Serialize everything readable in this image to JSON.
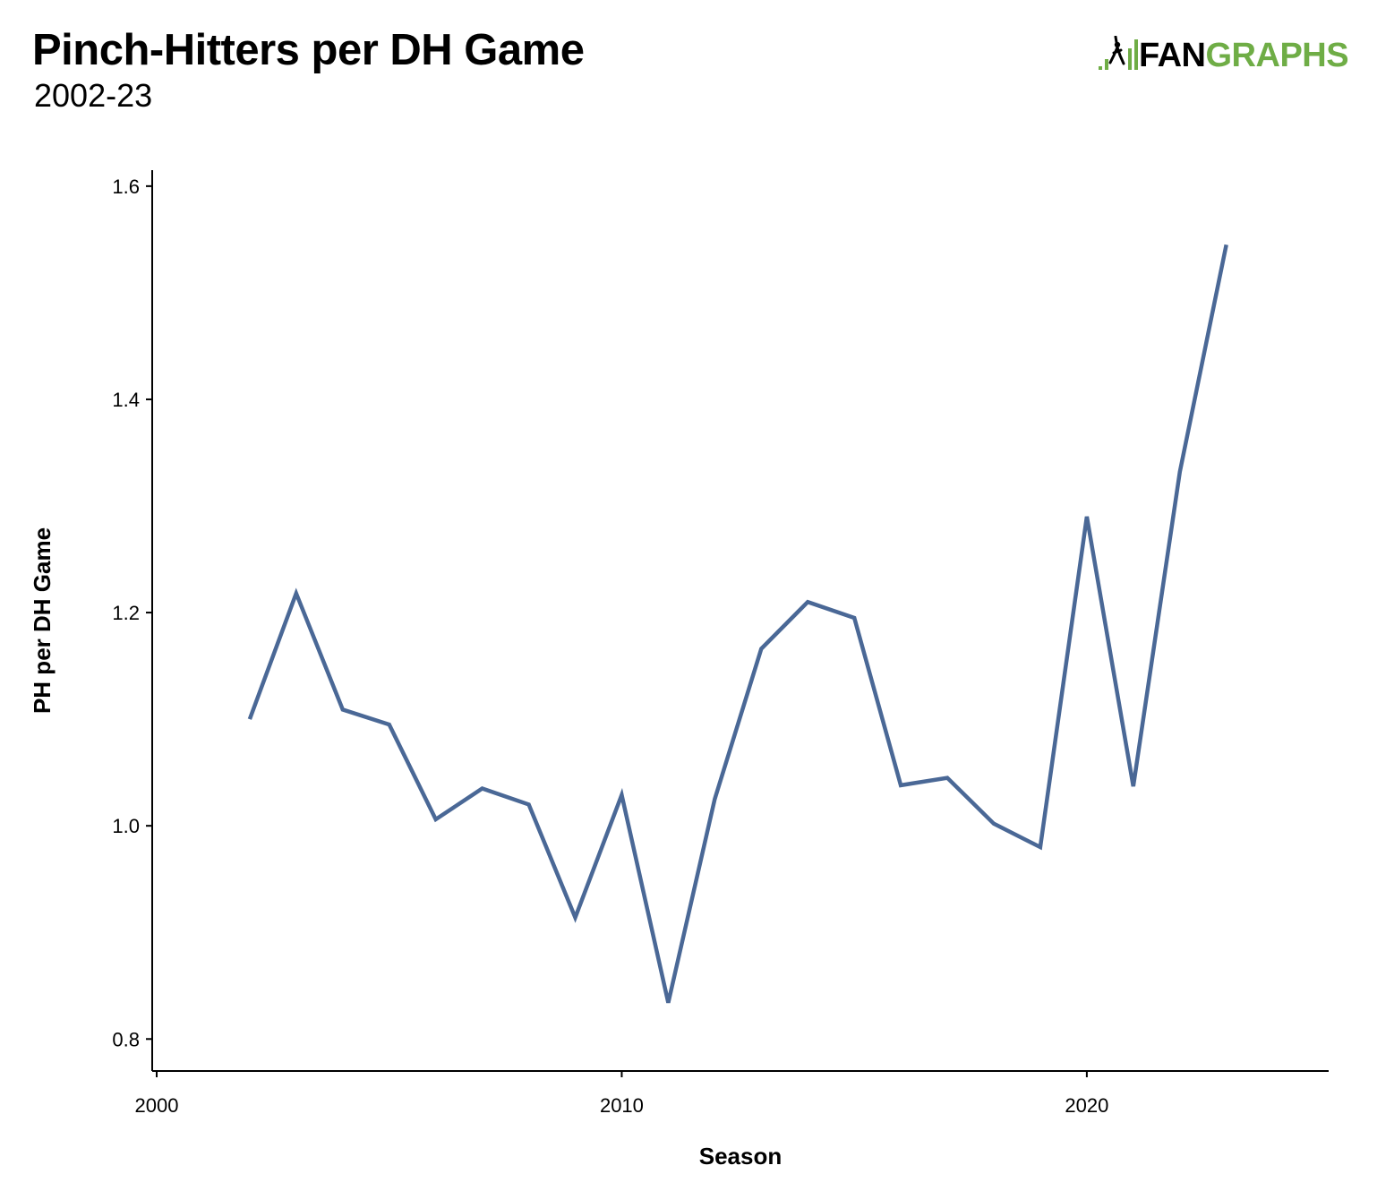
{
  "header": {
    "title": "Pinch-Hitters per DH Game",
    "subtitle": "2002-23"
  },
  "logo": {
    "part1": "FAN",
    "part2": "GRAPHS",
    "accent_color": "#6fad46",
    "icon": "fangraphs-batter-icon"
  },
  "chart_data": {
    "type": "line",
    "title": "Pinch-Hitters per DH Game",
    "subtitle": "2002-23",
    "xlabel": "Season",
    "ylabel": "PH per DH Game",
    "xlim": [
      2000,
      2025.2
    ],
    "ylim": [
      0.77,
      1.615
    ],
    "x_ticks": [
      2000,
      2010,
      2020
    ],
    "y_ticks": [
      0.8,
      1.0,
      1.2,
      1.4,
      1.6
    ],
    "y_tick_labels": [
      "0.8",
      "1.0",
      "1.2",
      "1.4",
      "1.6"
    ],
    "x_tick_labels": [
      "2000",
      "2010",
      "2020"
    ],
    "grid": false,
    "line_color": "#4a6896",
    "series": [
      {
        "x": [
          2002,
          2003,
          2004,
          2005,
          2006,
          2007,
          2008,
          2009,
          2010,
          2011,
          2012,
          2013,
          2014,
          2015,
          2016,
          2017,
          2018,
          2019,
          2020,
          2021,
          2022,
          2023
        ],
        "y": [
          1.1,
          1.218,
          1.109,
          1.095,
          1.006,
          1.035,
          1.02,
          0.914,
          1.029,
          0.834,
          1.025,
          1.166,
          1.21,
          1.195,
          1.038,
          1.045,
          1.002,
          0.98,
          1.29,
          1.037,
          1.332,
          1.545
        ]
      }
    ]
  }
}
